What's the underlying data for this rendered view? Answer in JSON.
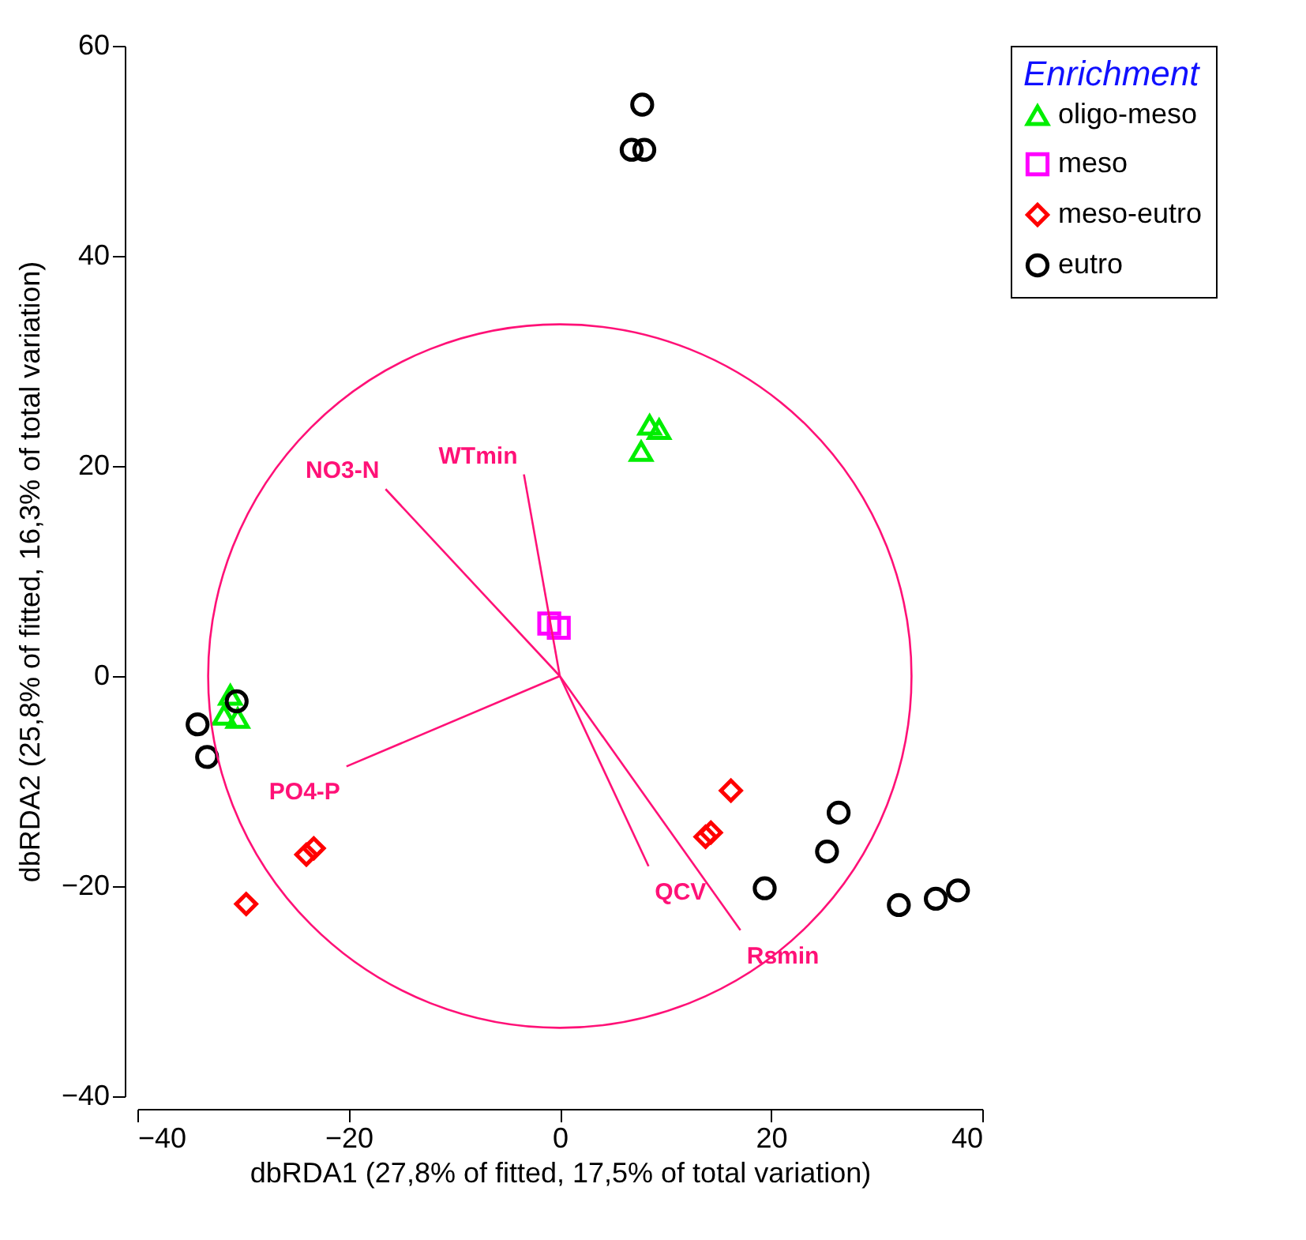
{
  "chart_data": {
    "type": "scatter",
    "xlabel": "dbRDA1 (27,8% of fitted, 17,5% of total variation)",
    "ylabel": "dbRDA2 (25,8% of fitted, 16,3% of total variation)",
    "legend_title": "Enrichment",
    "legend": "top right",
    "grid": false,
    "xlim": [
      -40,
      40
    ],
    "ylim": [
      -40,
      60
    ],
    "xticks": [
      -40,
      -20,
      0,
      20,
      40
    ],
    "yticks": [
      -40,
      -20,
      0,
      20,
      40,
      60
    ],
    "series": [
      {
        "name": "oligo-meso",
        "marker": "triangle",
        "color": "#00ee00",
        "x": [
          7.7,
          8.5,
          9.4,
          -31.2,
          -31.8,
          -30.5
        ],
        "values": [
          21.4,
          23.9,
          23.5,
          -1.8,
          -3.7,
          -4.0
        ]
      },
      {
        "name": "meso",
        "marker": "square",
        "color": "#ff00ff",
        "x": [
          -1.0,
          -0.1
        ],
        "values": [
          5.0,
          4.6
        ]
      },
      {
        "name": "meso-eutro",
        "marker": "diamond",
        "color": "#ff0000",
        "x": [
          16.2,
          14.3,
          13.8,
          -23.3,
          -24.0,
          -29.7
        ],
        "values": [
          -10.9,
          -14.9,
          -15.3,
          -16.4,
          -17.0,
          -21.7
        ]
      },
      {
        "name": "eutro",
        "marker": "circle",
        "color": "#000000",
        "x": [
          7.8,
          6.8,
          8.0,
          -34.3,
          -33.4,
          -30.6,
          19.4,
          25.3,
          26.4,
          32.1,
          35.6,
          37.7
        ],
        "values": [
          54.4,
          50.1,
          50.1,
          -4.6,
          -7.7,
          -2.4,
          -20.2,
          -16.7,
          -13.0,
          -21.8,
          -21.2,
          -20.4
        ]
      },
      {
        "name": "NO3-N",
        "type": "line",
        "color": "#ff1177",
        "x": [
          0,
          -16.5
        ],
        "values": [
          0,
          17.8
        ]
      },
      {
        "name": "WTmin",
        "type": "line",
        "color": "#ff1177",
        "x": [
          0,
          -3.4
        ],
        "values": [
          0,
          19.2
        ]
      },
      {
        "name": "PO4-P",
        "type": "line",
        "color": "#ff1177",
        "x": [
          0,
          -20.2
        ],
        "values": [
          0,
          -8.6
        ]
      },
      {
        "name": "QCV",
        "type": "line",
        "color": "#ff1177",
        "x": [
          0,
          8.4
        ],
        "values": [
          0,
          -18.1
        ]
      },
      {
        "name": "Rsmin",
        "type": "line",
        "color": "#ff1177",
        "x": [
          0,
          17.1
        ],
        "values": [
          0,
          -24.2
        ]
      }
    ]
  }
}
